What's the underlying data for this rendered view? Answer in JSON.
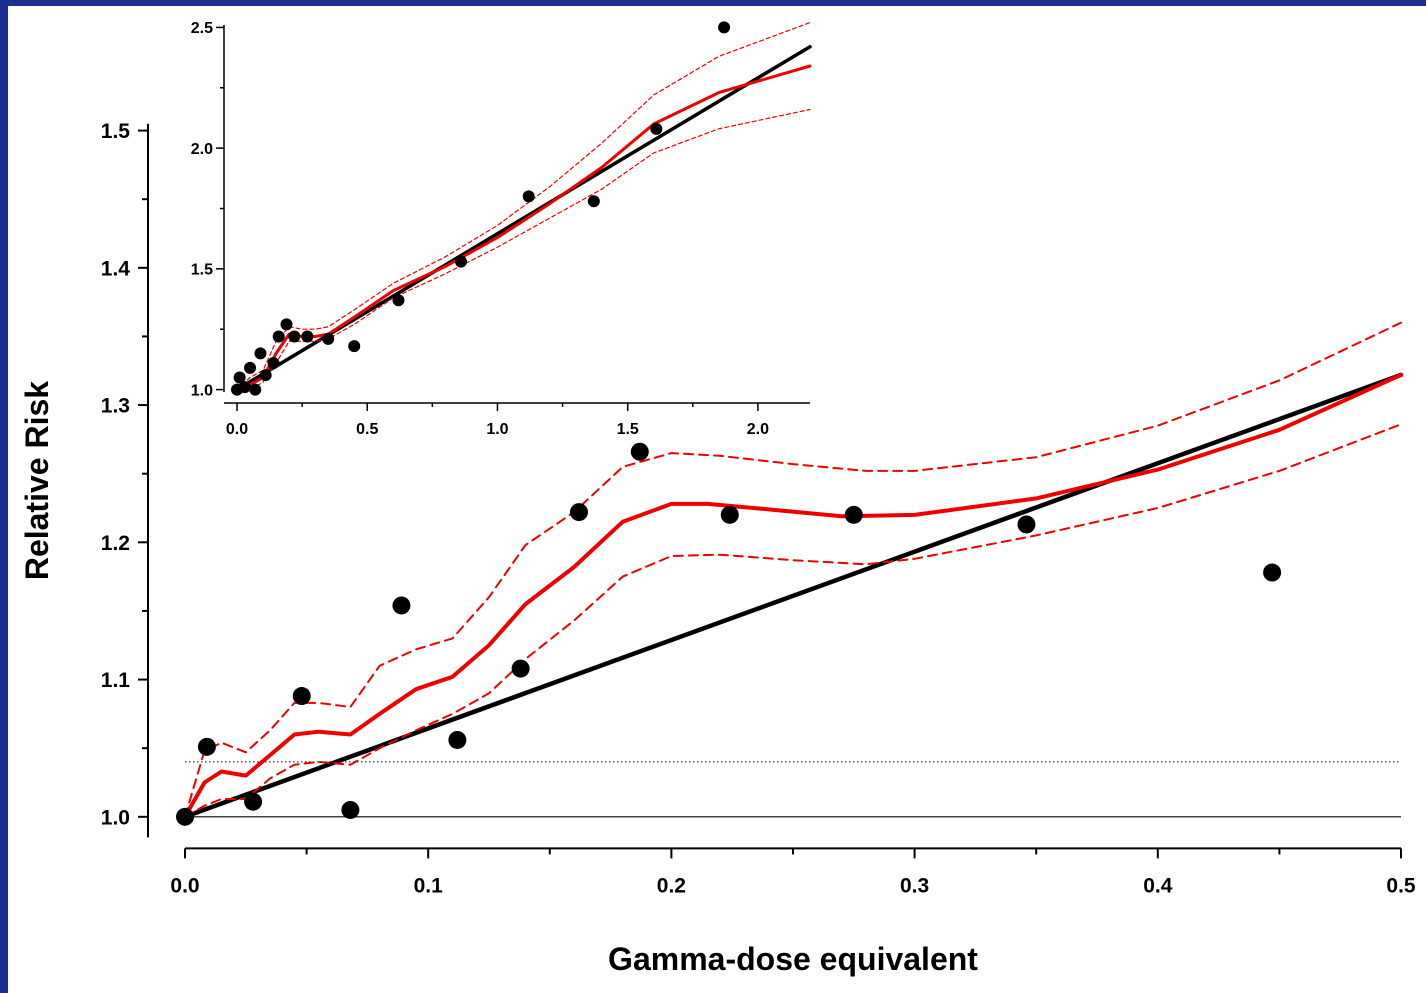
{
  "chart_data": [
    {
      "type": "scatter",
      "role": "main",
      "xlabel": "Gamma-dose equivalent",
      "ylabel": "Relative Risk",
      "xlim": [
        0.0,
        0.5
      ],
      "ylim": [
        0.985,
        1.505
      ],
      "xticks": [
        0.0,
        0.1,
        0.2,
        0.3,
        0.4,
        0.5
      ],
      "xtick_labels": [
        "0.0",
        "0.1",
        "0.2",
        "0.3",
        "0.4",
        "0.5"
      ],
      "yticks": [
        1.0,
        1.1,
        1.2,
        1.3,
        1.4,
        1.5
      ],
      "ytick_labels": [
        "1.0",
        "1.1",
        "1.2",
        "1.3",
        "1.4",
        "1.5"
      ],
      "reference_lines": [
        {
          "y": 1.0,
          "style": "solid",
          "color": "#000000"
        },
        {
          "y": 1.04,
          "style": "dotted",
          "color": "#000000"
        }
      ],
      "series": [
        {
          "kind": "points",
          "color": "#000000",
          "x": [
            0.0,
            0.009,
            0.028,
            0.048,
            0.068,
            0.089,
            0.112,
            0.138,
            0.162,
            0.187,
            0.224,
            0.275,
            0.346,
            0.447
          ],
          "y": [
            1.0,
            1.051,
            1.011,
            1.088,
            1.005,
            1.154,
            1.056,
            1.108,
            1.222,
            1.266,
            1.22,
            1.22,
            1.213,
            1.178
          ]
        },
        {
          "kind": "line",
          "style": "solid",
          "color": "#000000",
          "x": [
            0.0,
            0.5
          ],
          "y": [
            1.0,
            1.322
          ]
        },
        {
          "kind": "line",
          "style": "solid",
          "color": "#ee0000",
          "x": [
            0.0,
            0.008,
            0.015,
            0.025,
            0.035,
            0.045,
            0.055,
            0.068,
            0.08,
            0.095,
            0.11,
            0.125,
            0.14,
            0.16,
            0.18,
            0.2,
            0.215,
            0.24,
            0.27,
            0.3,
            0.35,
            0.4,
            0.45,
            0.5
          ],
          "y": [
            1.0,
            1.025,
            1.033,
            1.03,
            1.045,
            1.06,
            1.062,
            1.06,
            1.075,
            1.093,
            1.102,
            1.125,
            1.155,
            1.182,
            1.215,
            1.228,
            1.228,
            1.224,
            1.219,
            1.22,
            1.232,
            1.253,
            1.282,
            1.322
          ]
        },
        {
          "kind": "line",
          "style": "dashed",
          "color": "#ee0000",
          "x": [
            0.0,
            0.008,
            0.015,
            0.025,
            0.035,
            0.045,
            0.055,
            0.068,
            0.08,
            0.095,
            0.11,
            0.125,
            0.14,
            0.16,
            0.18,
            0.2,
            0.22,
            0.25,
            0.28,
            0.3,
            0.35,
            0.4,
            0.45,
            0.5
          ],
          "y": [
            1.0,
            1.048,
            1.054,
            1.047,
            1.063,
            1.083,
            1.083,
            1.08,
            1.11,
            1.122,
            1.13,
            1.16,
            1.198,
            1.222,
            1.255,
            1.265,
            1.263,
            1.257,
            1.252,
            1.252,
            1.262,
            1.285,
            1.318,
            1.36
          ]
        },
        {
          "kind": "line",
          "style": "dashed",
          "color": "#ee0000",
          "x": [
            0.0,
            0.008,
            0.015,
            0.025,
            0.035,
            0.045,
            0.055,
            0.068,
            0.08,
            0.095,
            0.11,
            0.125,
            0.14,
            0.16,
            0.18,
            0.2,
            0.22,
            0.25,
            0.28,
            0.3,
            0.35,
            0.4,
            0.45,
            0.5
          ],
          "y": [
            1.0,
            1.008,
            1.013,
            1.013,
            1.028,
            1.038,
            1.04,
            1.038,
            1.05,
            1.063,
            1.075,
            1.09,
            1.115,
            1.143,
            1.175,
            1.19,
            1.191,
            1.187,
            1.184,
            1.188,
            1.205,
            1.225,
            1.252,
            1.286
          ]
        }
      ]
    },
    {
      "type": "scatter",
      "role": "inset",
      "xlim": [
        -0.05,
        2.2
      ],
      "ylim": [
        0.99,
        2.51
      ],
      "xticks": [
        0.0,
        0.5,
        1.0,
        1.5,
        2.0
      ],
      "xtick_labels": [
        "0.0",
        "0.5",
        "1.0",
        "1.5",
        "2.0"
      ],
      "yticks": [
        1.0,
        1.5,
        2.0,
        2.5
      ],
      "ytick_labels": [
        "1.0",
        "1.5",
        "2.0",
        "2.5"
      ],
      "series": [
        {
          "kind": "points",
          "color": "#000000",
          "x": [
            0.0,
            0.01,
            0.03,
            0.05,
            0.07,
            0.09,
            0.11,
            0.14,
            0.16,
            0.19,
            0.22,
            0.27,
            0.35,
            0.45,
            0.62,
            0.86,
            1.12,
            1.37,
            1.61,
            1.87
          ],
          "y": [
            1.0,
            1.05,
            1.01,
            1.09,
            1.0,
            1.15,
            1.06,
            1.11,
            1.22,
            1.27,
            1.22,
            1.22,
            1.21,
            1.18,
            1.37,
            1.53,
            1.8,
            1.78,
            2.08,
            2.5
          ]
        },
        {
          "kind": "line",
          "style": "solid",
          "color": "#000000",
          "x": [
            0.0,
            2.2
          ],
          "y": [
            1.0,
            2.42
          ]
        },
        {
          "kind": "line",
          "style": "solid",
          "color": "#ee0000",
          "x": [
            0.0,
            0.05,
            0.1,
            0.15,
            0.2,
            0.25,
            0.3,
            0.35,
            0.45,
            0.6,
            0.8,
            1.0,
            1.2,
            1.4,
            1.6,
            1.85,
            2.2
          ],
          "y": [
            1.0,
            1.02,
            1.05,
            1.15,
            1.23,
            1.22,
            1.22,
            1.23,
            1.3,
            1.41,
            1.51,
            1.63,
            1.77,
            1.92,
            2.1,
            2.23,
            2.34
          ]
        },
        {
          "kind": "line",
          "style": "dashed",
          "color": "#ee0000",
          "x": [
            0.0,
            0.05,
            0.1,
            0.15,
            0.2,
            0.25,
            0.3,
            0.35,
            0.45,
            0.6,
            0.8,
            1.0,
            1.2,
            1.4,
            1.6,
            1.85,
            2.2
          ],
          "y": [
            1.0,
            1.05,
            1.08,
            1.2,
            1.26,
            1.25,
            1.25,
            1.26,
            1.33,
            1.44,
            1.55,
            1.68,
            1.84,
            2.02,
            2.22,
            2.38,
            2.52
          ]
        },
        {
          "kind": "line",
          "style": "dashed",
          "color": "#ee0000",
          "x": [
            0.0,
            0.05,
            0.1,
            0.15,
            0.2,
            0.25,
            0.3,
            0.35,
            0.45,
            0.6,
            0.8,
            1.0,
            1.2,
            1.4,
            1.6,
            1.85,
            2.2
          ],
          "y": [
            1.0,
            1.0,
            1.03,
            1.11,
            1.2,
            1.2,
            1.2,
            1.21,
            1.27,
            1.38,
            1.48,
            1.59,
            1.71,
            1.83,
            1.98,
            2.08,
            2.16
          ]
        }
      ]
    }
  ]
}
